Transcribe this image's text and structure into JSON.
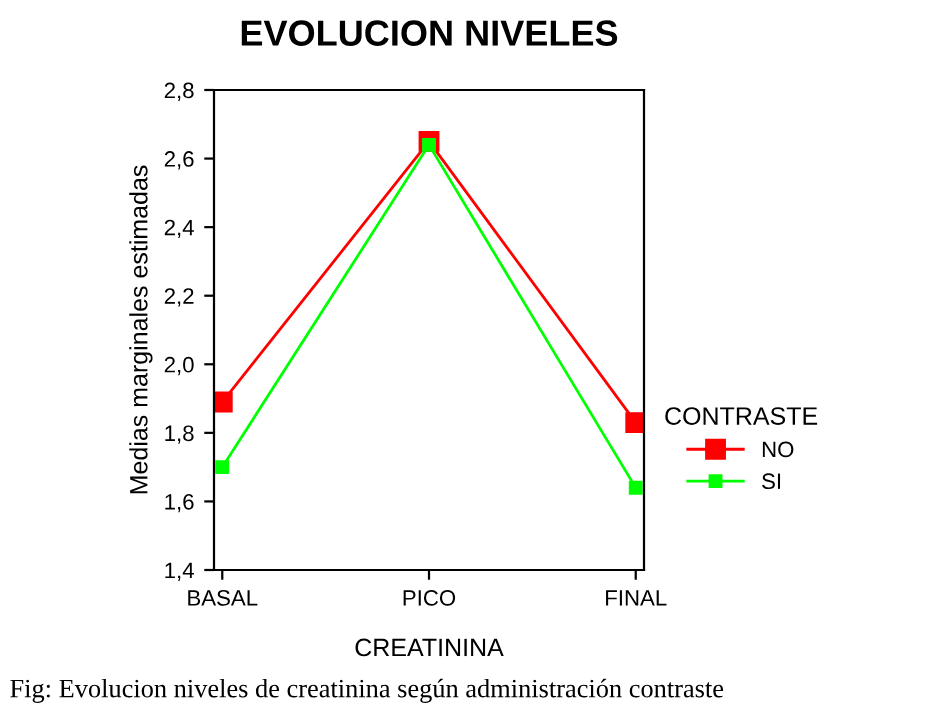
{
  "chart_data": {
    "type": "line",
    "title": "EVOLUCION NIVELES",
    "xlabel": "CREATININA",
    "ylabel": "Medias marginales estimadas",
    "legend_title": "CONTRASTE",
    "categories": [
      "BASAL",
      "PICO",
      "FINAL"
    ],
    "series": [
      {
        "name": "NO",
        "color": "#ff0000",
        "values": [
          1.89,
          2.65,
          1.83
        ]
      },
      {
        "name": "SI",
        "color": "#00ff00",
        "values": [
          1.7,
          2.64,
          1.64
        ]
      }
    ],
    "ylim": [
      1.4,
      2.8
    ],
    "yticks": [
      {
        "value": 1.4,
        "label": "1,4"
      },
      {
        "value": 1.6,
        "label": "1,6"
      },
      {
        "value": 1.8,
        "label": "1,8"
      },
      {
        "value": 2.0,
        "label": "2,0"
      },
      {
        "value": 2.2,
        "label": "2,2"
      },
      {
        "value": 2.4,
        "label": "2,4"
      },
      {
        "value": 2.6,
        "label": "2,6"
      },
      {
        "value": 2.8,
        "label": "2,8"
      }
    ],
    "marker": "square",
    "grid": false,
    "legend": "right",
    "annotations": [
      "Fig: Evolucion niveles de creatinina según administración contraste"
    ]
  }
}
